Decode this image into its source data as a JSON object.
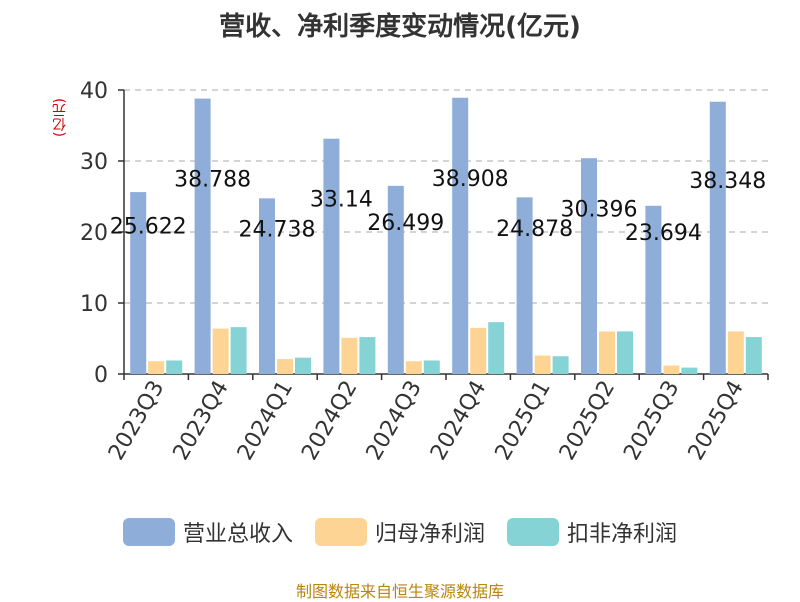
{
  "chart_data": {
    "type": "bar",
    "title": "营收、净利季度变动情况(亿元)",
    "unit_label": "(亿元)",
    "categories": [
      "2023Q3",
      "2023Q4",
      "2024Q1",
      "2024Q2",
      "2024Q3",
      "2024Q4",
      "2025Q1",
      "2025Q2",
      "2025Q3",
      "2025Q4"
    ],
    "series": [
      {
        "name": "营业总收入",
        "color": "#8eadd9",
        "values": [
          25.622,
          38.788,
          24.738,
          33.14,
          26.499,
          38.908,
          24.878,
          30.396,
          23.694,
          38.348
        ]
      },
      {
        "name": "归母净利润",
        "color": "#fdd494",
        "values": [
          1.8,
          6.4,
          2.1,
          5.1,
          1.8,
          6.5,
          2.6,
          6.0,
          1.2,
          6.0
        ]
      },
      {
        "name": "扣非净利润",
        "color": "#86d3d6",
        "values": [
          1.9,
          6.6,
          2.3,
          5.2,
          1.9,
          7.3,
          2.5,
          6.0,
          0.9,
          5.2
        ]
      }
    ],
    "ylim": [
      0,
      40
    ],
    "yticks": [
      0,
      10,
      20,
      30,
      40
    ],
    "grid": true,
    "legend_position": "bottom"
  },
  "source": "制图数据来自恒生聚源数据库"
}
